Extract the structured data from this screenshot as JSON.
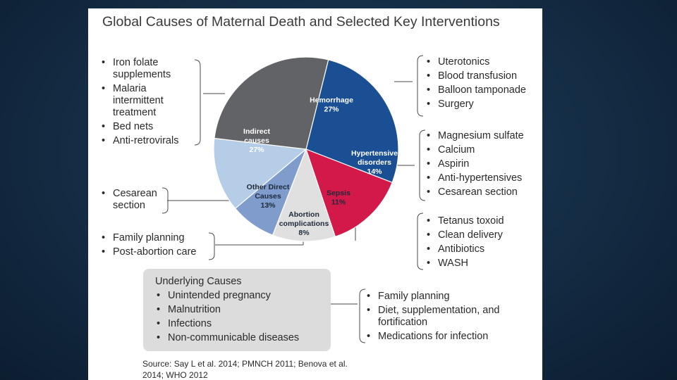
{
  "title": "Global Causes of Maternal Death and Selected Key Interventions",
  "chart_data": {
    "type": "pie",
    "title": "Global Causes of Maternal Death and Selected Key Interventions",
    "slices": [
      {
        "label_lines": [
          "Hemorrhage"
        ],
        "value_label": "27%",
        "value": 27,
        "color": "#1b4f93"
      },
      {
        "label_lines": [
          "Hypertensive",
          "disorders"
        ],
        "value_label": "14%",
        "value": 14,
        "color": "#d3184a"
      },
      {
        "label_lines": [
          "Sepsis"
        ],
        "value_label": "11%",
        "value": 11,
        "color": "#e0e0e0"
      },
      {
        "label_lines": [
          "Abortion",
          "complications"
        ],
        "value_label": "8%",
        "value": 8,
        "color": "#7f9ccc"
      },
      {
        "label_lines": [
          "Other Direct",
          "Causes"
        ],
        "value_label": "13%",
        "value": 13,
        "color": "#b6cde8"
      },
      {
        "label_lines": [
          "Indirect",
          "causes"
        ],
        "value_label": "27%",
        "value": 27,
        "color": "#626366"
      }
    ]
  },
  "interventions": {
    "indirect": [
      "Iron folate supplements",
      "Malaria intermittent treatment",
      "Bed nets",
      "Anti-retrovirals"
    ],
    "other_direct": [
      "Cesarean section"
    ],
    "abortion": [
      "Family planning",
      "Post-abortion care"
    ],
    "hemorrhage": [
      "Uterotonics",
      "Blood transfusion",
      "Balloon tamponade",
      "Surgery"
    ],
    "hypertensive": [
      "Magnesium sulfate",
      "Calcium",
      "Aspirin",
      "Anti-hypertensives",
      "Cesarean section"
    ],
    "sepsis": [
      "Tetanus toxoid",
      "Clean delivery",
      "Antibiotics",
      "WASH"
    ]
  },
  "underlying": {
    "title": "Underlying Causes",
    "items": [
      "Unintended pregnancy",
      "Malnutrition",
      "Infections",
      "Non-communicable diseases"
    ],
    "interventions": [
      "Family planning",
      "Diet, supplementation, and fortification",
      "Medications for infection"
    ]
  },
  "source": "Source: Say L et al. 2014; PMNCH 2011; Benova et al. 2014; WHO 2012"
}
